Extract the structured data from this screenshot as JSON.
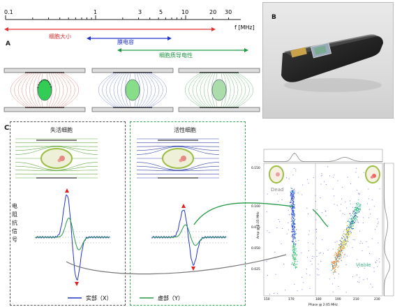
{
  "scale": {
    "ticks": [
      "0.1",
      "1",
      "3",
      "5",
      "10",
      "20",
      "30"
    ],
    "unit": "f [MHz]"
  },
  "arrows": {
    "cell_size": "细胞大小",
    "membrane_cap": "膜电容",
    "cyto_cond": "细胞质导电性"
  },
  "panel_labels": {
    "a": "A",
    "b": "B",
    "c": "C"
  },
  "panelC": {
    "dead_title": "失活细胞",
    "live_title": "活性细胞",
    "signal_label": "电阻抗信号",
    "legend_real": "实部（X）",
    "legend_imag": "虚部（Y）"
  },
  "scatter": {
    "dead_label": "Dead",
    "viable_label": "Viable",
    "xlabel": "Phase @ 2.05 MHz",
    "ylabel": "Amp @ 2.05 MHz",
    "xticks": [
      "150",
      "170",
      "180",
      "190",
      "210",
      "230"
    ],
    "yticks": [
      "0.100",
      "0.075",
      "0.050",
      "0.025"
    ],
    "ytop": "0.150"
  },
  "colors": {
    "red": "#e03030",
    "blue": "#2233cc",
    "green": "#229944",
    "field_green": "#66bb44",
    "viable_text": "#44bb88"
  }
}
